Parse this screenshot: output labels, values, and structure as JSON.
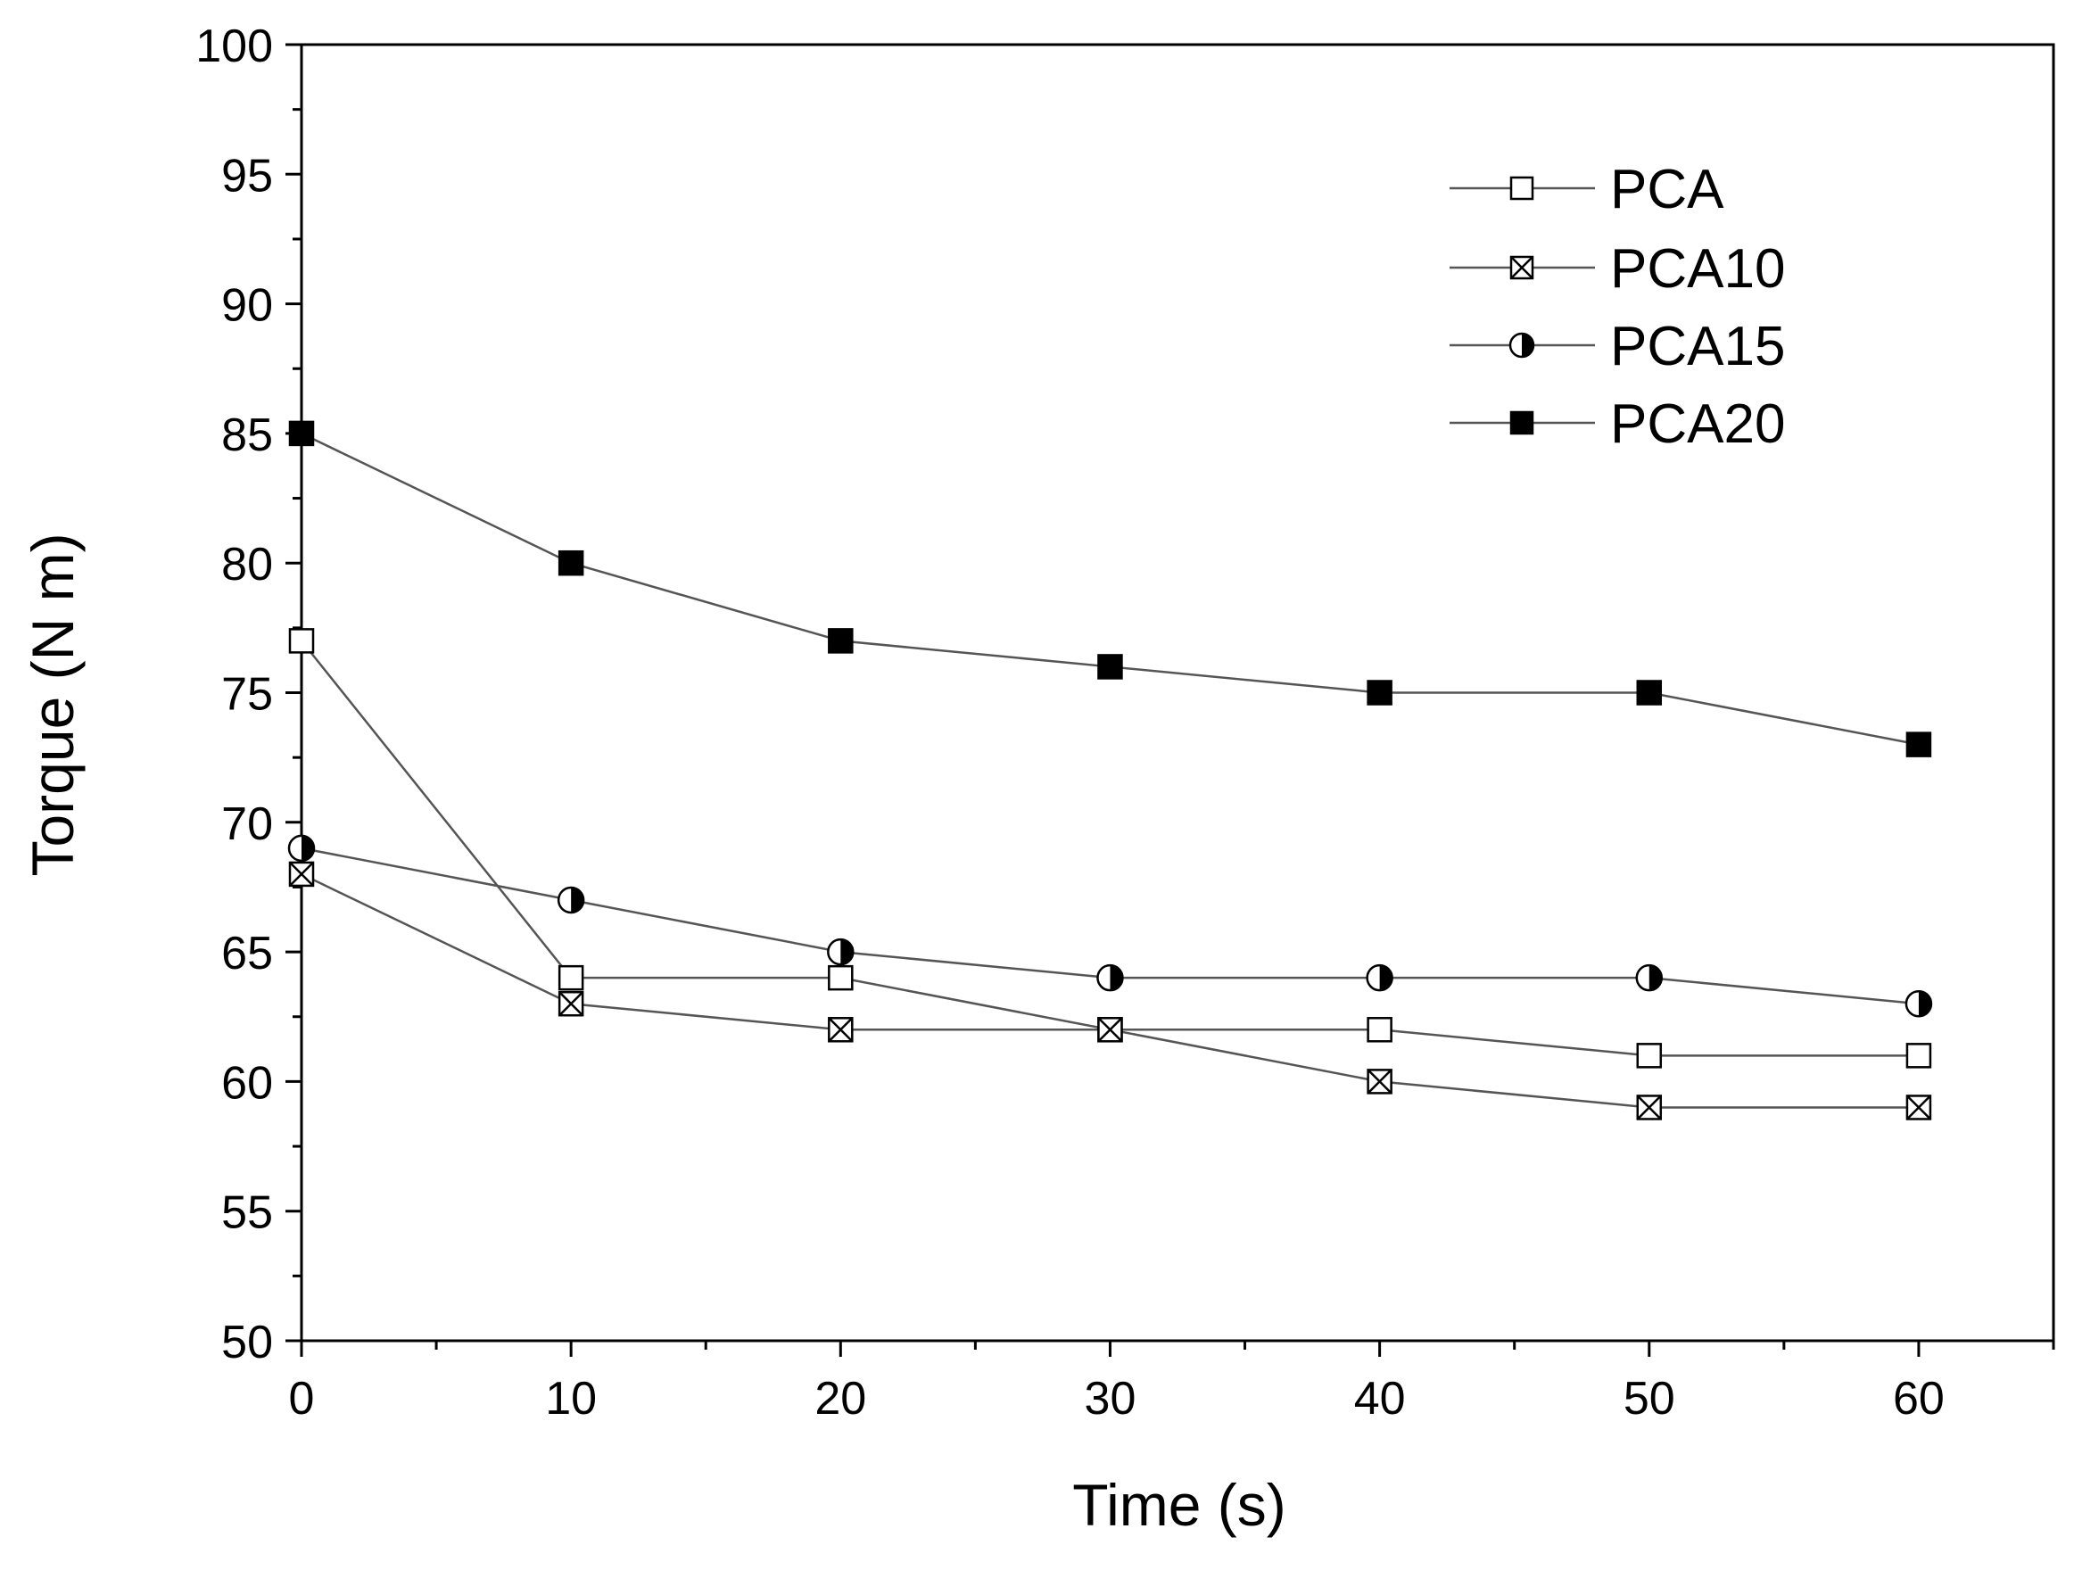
{
  "chart_data": {
    "type": "line",
    "title": "",
    "xlabel": "Time (s)",
    "ylabel": "Torque (N m)",
    "xlim": [
      0,
      65
    ],
    "ylim": [
      50,
      100
    ],
    "x_ticks": [
      0,
      10,
      20,
      30,
      40,
      50,
      60
    ],
    "y_ticks": [
      50,
      55,
      60,
      65,
      70,
      75,
      80,
      85,
      90,
      95,
      100
    ],
    "grid": false,
    "legend_position": "top-right",
    "x": [
      0,
      10,
      20,
      30,
      40,
      50,
      60
    ],
    "series": [
      {
        "name": "PCA",
        "marker": "open-square",
        "values": [
          77,
          64,
          64,
          62,
          62,
          61,
          61
        ]
      },
      {
        "name": "PCA10",
        "marker": "crossed-square",
        "values": [
          68,
          63,
          62,
          62,
          60,
          59,
          59
        ]
      },
      {
        "name": "PCA15",
        "marker": "half-filled-circle",
        "values": [
          69,
          67,
          65,
          64,
          64,
          64,
          63
        ]
      },
      {
        "name": "PCA20",
        "marker": "filled-square",
        "values": [
          85,
          80,
          77,
          76,
          75,
          75,
          73
        ]
      }
    ],
    "colors": {
      "line": "#555555",
      "marker": "#000000",
      "axis": "#000000"
    }
  }
}
